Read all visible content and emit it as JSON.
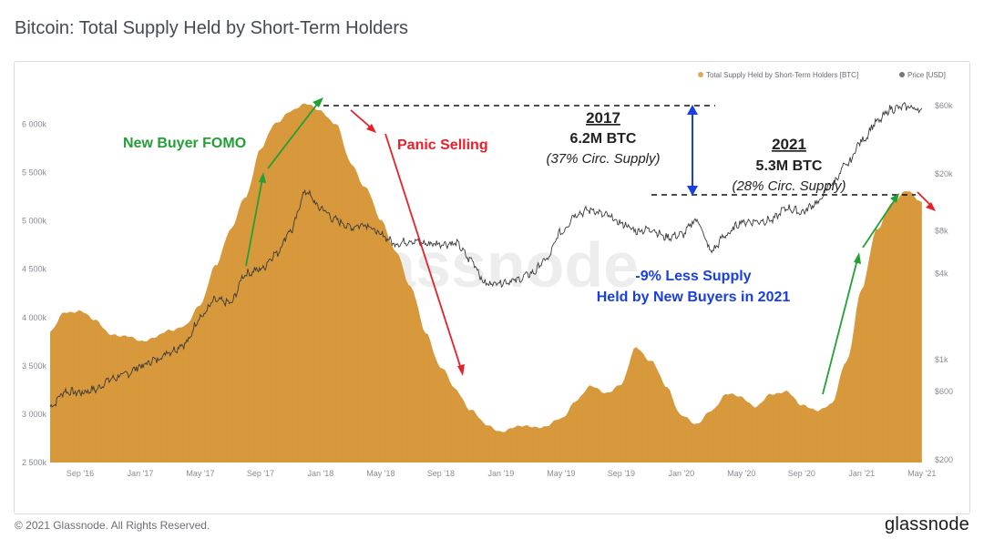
{
  "header": {
    "title": "Bitcoin: Total Supply Held by Short-Term Holders"
  },
  "footer": {
    "copyright": "© 2021 Glassnode. All Rights Reserved.",
    "logo": "glassnode"
  },
  "watermark": "glassnode",
  "colors": {
    "supply": "#d89a3c",
    "price": "#3a3a3a",
    "green": "#22a035",
    "red": "#e8202a",
    "blue": "#1a3fe0"
  },
  "chart_data": {
    "type": "area",
    "legend": [
      {
        "name": "Total Supply Held by Short-Term Holders [BTC]",
        "color": "#e0a75e"
      },
      {
        "name": "Price [USD]",
        "color": "#777777"
      }
    ],
    "x_tick_labels": [
      "Sep '16",
      "Jan '17",
      "May '17",
      "Sep '17",
      "Jan '18",
      "May '18",
      "Sep '18",
      "Jan '19",
      "May '19",
      "Sep '19",
      "Jan '20",
      "May '20",
      "Sep '20",
      "Jan '21",
      "May '21"
    ],
    "y_left_tick_labels": [
      "6 000k",
      "5 500k",
      "5 000k",
      "4 500k",
      "4 000k",
      "3 500k",
      "3 000k",
      "2 500k"
    ],
    "y_left_values": [
      6000000,
      5500000,
      5000000,
      4500000,
      4000000,
      3500000,
      3000000,
      2500000
    ],
    "ylim_left": [
      2500000,
      6250000
    ],
    "y_right_tick_labels": [
      "$60k",
      "$20k",
      "$8k",
      "$4k",
      "$1k",
      "$600",
      "$200"
    ],
    "y_right_values": [
      60000,
      20000,
      8000,
      4000,
      1000,
      600,
      200
    ],
    "ylim_right": [
      200,
      60000
    ],
    "y_right_scale": "log",
    "legend_position": "top-right",
    "series": [
      {
        "name": "Total Supply Held by Short-Term Holders [BTC]",
        "x": [
          "2016-07",
          "2016-08",
          "2016-09",
          "2016-10",
          "2016-11",
          "2016-12",
          "2017-01",
          "2017-02",
          "2017-03",
          "2017-04",
          "2017-05",
          "2017-06",
          "2017-07",
          "2017-08",
          "2017-09",
          "2017-10",
          "2017-11",
          "2017-12",
          "2018-01",
          "2018-02",
          "2018-03",
          "2018-04",
          "2018-05",
          "2018-06",
          "2018-07",
          "2018-08",
          "2018-09",
          "2018-10",
          "2018-11",
          "2018-12",
          "2019-01",
          "2019-02",
          "2019-03",
          "2019-04",
          "2019-05",
          "2019-06",
          "2019-07",
          "2019-08",
          "2019-09",
          "2019-10",
          "2019-11",
          "2019-12",
          "2020-01",
          "2020-02",
          "2020-03",
          "2020-04",
          "2020-05",
          "2020-06",
          "2020-07",
          "2020-08",
          "2020-09",
          "2020-10",
          "2020-11",
          "2020-12",
          "2021-01",
          "2021-02",
          "2021-03",
          "2021-04",
          "2021-05"
        ],
        "values": [
          3850000,
          4050000,
          4080000,
          3960000,
          3840000,
          3800000,
          3760000,
          3800000,
          3860000,
          3930000,
          4120000,
          4550000,
          4900000,
          5250000,
          5750000,
          6000000,
          6150000,
          6200000,
          6150000,
          6000000,
          5600000,
          5350000,
          5000000,
          4700000,
          4300000,
          3850000,
          3480000,
          3250000,
          3050000,
          2880000,
          2830000,
          2860000,
          2880000,
          2870000,
          2950000,
          3150000,
          3280000,
          3230000,
          3300000,
          3700000,
          3550000,
          3280000,
          3000000,
          2880000,
          3050000,
          3200000,
          3180000,
          3080000,
          3200000,
          3250000,
          3080000,
          3050000,
          3100000,
          3550000,
          4300000,
          4900000,
          5200000,
          5300000,
          5200000
        ]
      },
      {
        "name": "Price [USD]",
        "x": [
          "2016-07",
          "2016-08",
          "2016-09",
          "2016-10",
          "2016-11",
          "2016-12",
          "2017-01",
          "2017-02",
          "2017-03",
          "2017-04",
          "2017-05",
          "2017-06",
          "2017-07",
          "2017-08",
          "2017-09",
          "2017-10",
          "2017-11",
          "2017-12",
          "2018-01",
          "2018-02",
          "2018-03",
          "2018-04",
          "2018-05",
          "2018-06",
          "2018-07",
          "2018-08",
          "2018-09",
          "2018-10",
          "2018-11",
          "2018-12",
          "2019-01",
          "2019-02",
          "2019-03",
          "2019-04",
          "2019-05",
          "2019-06",
          "2019-07",
          "2019-08",
          "2019-09",
          "2019-10",
          "2019-11",
          "2019-12",
          "2020-01",
          "2020-02",
          "2020-03",
          "2020-04",
          "2020-05",
          "2020-06",
          "2020-07",
          "2020-08",
          "2020-09",
          "2020-10",
          "2020-11",
          "2020-12",
          "2021-01",
          "2021-02",
          "2021-03",
          "2021-04",
          "2021-05"
        ],
        "values": [
          470,
          600,
          590,
          620,
          730,
          790,
          900,
          1000,
          1150,
          1300,
          2000,
          2600,
          2500,
          4000,
          4300,
          5500,
          8000,
          15000,
          11500,
          9500,
          8500,
          8900,
          7500,
          6500,
          6800,
          6500,
          6500,
          6500,
          5000,
          3400,
          3500,
          3600,
          4000,
          5000,
          7800,
          10500,
          11200,
          10200,
          9000,
          8000,
          8200,
          7200,
          7500,
          9500,
          5800,
          7500,
          9200,
          9300,
          9500,
          11500,
          10800,
          12500,
          17000,
          23000,
          34000,
          46000,
          57000,
          59000,
          56000
        ]
      }
    ]
  },
  "annotations": {
    "fomo": "New Buyer FOMO",
    "panic": "Panic Selling",
    "y2017": "2017",
    "supply2017": "6.2M BTC",
    "pct2017": "(37% Circ. Supply)",
    "y2021": "2021",
    "supply2021": "5.3M BTC",
    "pct2021": "(28% Circ. Supply)",
    "less_supply_1": "-9% Less Supply",
    "less_supply_2": "Held by New Buyers in 2021"
  }
}
